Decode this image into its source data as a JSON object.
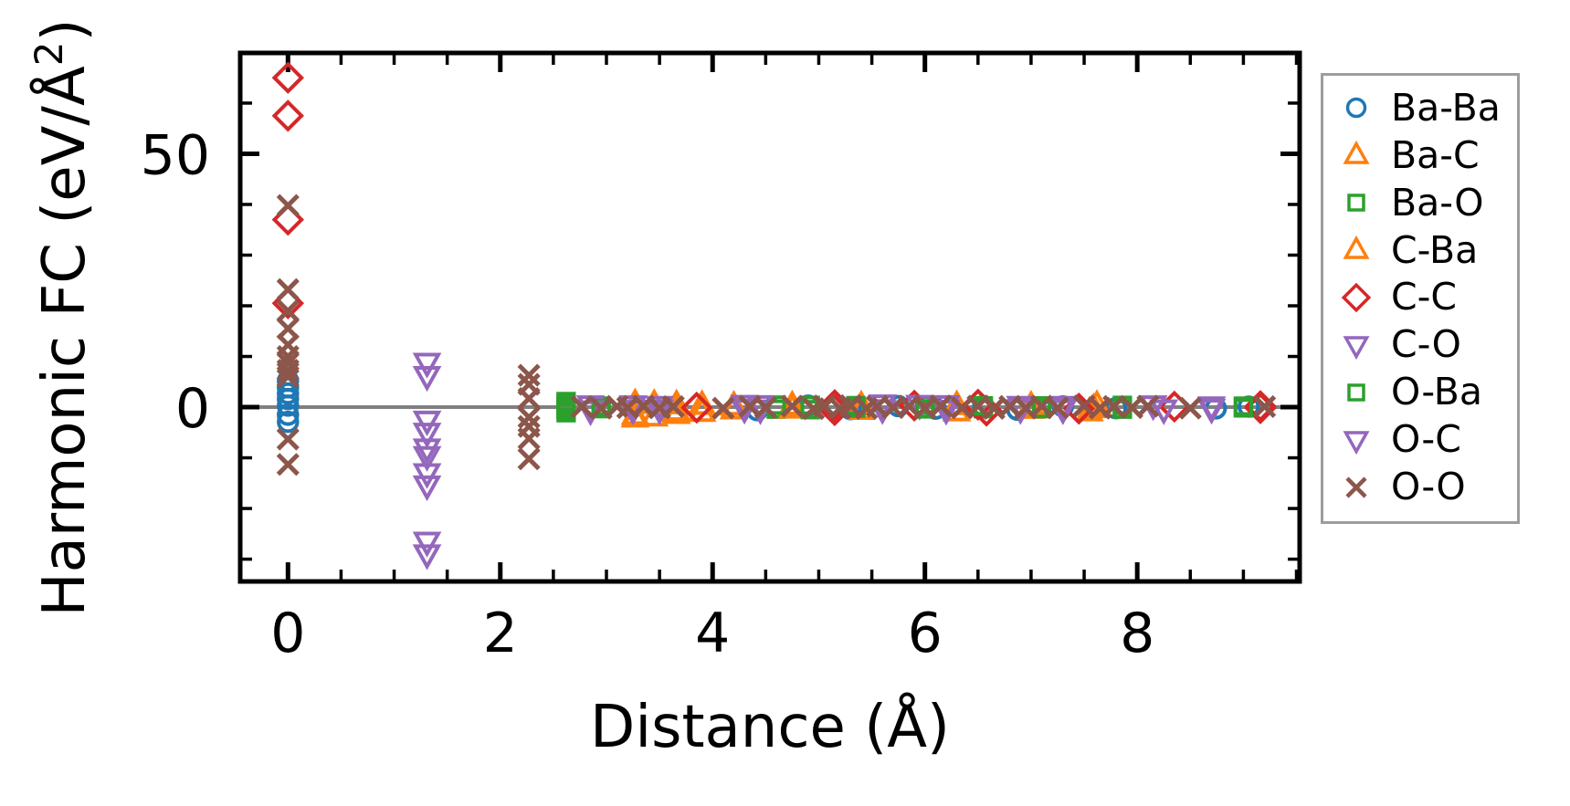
{
  "chart_data": {
    "type": "scatter",
    "xlabel": "Distance (Å)",
    "ylabel": "Harmonic FC (eV/Å²)",
    "ylabel_pre": "Harmonic FC (eV/Å",
    "ylabel_sup": "2",
    "ylabel_post": ")",
    "xlim": [
      -0.45,
      9.53
    ],
    "ylim": [
      -34.4,
      69.9
    ],
    "x_major_ticks": [
      0,
      2,
      4,
      6,
      8
    ],
    "x_tick_labels": [
      "0",
      "2",
      "4",
      "6",
      "8"
    ],
    "x_minor_step": 0.5,
    "y_major_ticks": [
      0,
      50
    ],
    "y_tick_labels": [
      "0",
      "50"
    ],
    "y_minor_step": 10,
    "grid": false,
    "zero_line": {
      "y": 0,
      "color": "#808080"
    },
    "axis_color": "#000000",
    "background_color": "#ffffff",
    "legend": {
      "position": "outside-right",
      "border_color": "#9d9d9d"
    },
    "series": [
      {
        "name": "Ba-Ba",
        "marker": "circle",
        "color": "#1f77b4",
        "points": [
          [
            0,
            5.2
          ],
          [
            0,
            3.9
          ],
          [
            0,
            2.7
          ],
          [
            0,
            1.6
          ],
          [
            0,
            0.3
          ],
          [
            0,
            -1.5
          ],
          [
            0,
            -2.9
          ],
          [
            4.42,
            -0.6
          ],
          [
            4.9,
            0.3
          ],
          [
            5.3,
            -0.4
          ],
          [
            5.75,
            0.2
          ],
          [
            6.1,
            -0.3
          ],
          [
            6.55,
            0.2
          ],
          [
            6.87,
            -0.5
          ],
          [
            7.3,
            0.15
          ],
          [
            7.8,
            -0.2
          ],
          [
            8.74,
            -0.25
          ],
          [
            9.05,
            0.1
          ]
        ]
      },
      {
        "name": "Ba-C",
        "marker": "triangle-up",
        "color": "#ff7f0e",
        "points": [
          [
            3.27,
            -1.6
          ],
          [
            3.27,
            0.7
          ],
          [
            3.45,
            -1.9
          ],
          [
            3.66,
            -1.4
          ],
          [
            3.66,
            0.5
          ],
          [
            3.9,
            -1.0
          ],
          [
            4.2,
            -0.5
          ],
          [
            4.75,
            0.3
          ],
          [
            5.4,
            -0.6
          ],
          [
            6.3,
            -0.9
          ],
          [
            7.0,
            -0.4
          ],
          [
            7.55,
            -0.9
          ],
          [
            7.62,
            0.4
          ]
        ]
      },
      {
        "name": "Ba-O",
        "marker": "square",
        "color": "#2ca02c",
        "points": [
          [
            2.62,
            0.6
          ],
          [
            2.62,
            -0.5
          ],
          [
            2.62,
            1.1
          ],
          [
            2.95,
            0.2
          ],
          [
            4.6,
            -0.4
          ],
          [
            4.92,
            0.35
          ],
          [
            5.35,
            -0.2
          ],
          [
            6.0,
            0.4
          ],
          [
            6.55,
            -0.3
          ],
          [
            7.1,
            0.25
          ],
          [
            7.86,
            -0.4
          ],
          [
            9.0,
            0.2
          ]
        ]
      },
      {
        "name": "C-Ba",
        "marker": "triangle-up",
        "color": "#ff7f0e",
        "points": [
          [
            3.27,
            -2.1
          ],
          [
            3.45,
            0.6
          ],
          [
            3.66,
            -0.8
          ],
          [
            3.9,
            0.4
          ],
          [
            4.2,
            0.25
          ],
          [
            4.75,
            -0.35
          ],
          [
            5.4,
            0.3
          ],
          [
            6.3,
            0.35
          ],
          [
            7.0,
            0.25
          ],
          [
            7.59,
            -0.25
          ]
        ]
      },
      {
        "name": "C-C",
        "marker": "diamond",
        "color": "#d62728",
        "points": [
          [
            0,
            65
          ],
          [
            0,
            57.5
          ],
          [
            0,
            37
          ],
          [
            0,
            20.5
          ],
          [
            3.85,
            -0.1
          ],
          [
            5.15,
            0.4
          ],
          [
            5.15,
            -0.6
          ],
          [
            5.9,
            0.3
          ],
          [
            6.5,
            0.5
          ],
          [
            6.58,
            -0.7
          ],
          [
            7.45,
            -0.3
          ],
          [
            8.35,
            0.1
          ],
          [
            9.16,
            0.2
          ],
          [
            9.16,
            -0.2
          ]
        ]
      },
      {
        "name": "C-O",
        "marker": "triangle-down",
        "color": "#9467bd",
        "points": [
          [
            1.31,
            8.8
          ],
          [
            1.31,
            -2.6
          ],
          [
            1.31,
            -8.1
          ],
          [
            1.31,
            -13.0
          ],
          [
            1.31,
            -26.5
          ],
          [
            2.85,
            0.4
          ],
          [
            3.25,
            -0.5
          ],
          [
            3.5,
            0.3
          ],
          [
            4.3,
            0.5
          ],
          [
            4.45,
            -0.4
          ],
          [
            5.6,
            0.6
          ],
          [
            5.95,
            0.5
          ],
          [
            6.2,
            -0.5
          ],
          [
            6.9,
            0.3
          ],
          [
            7.3,
            -0.4
          ],
          [
            8.15,
            0.4
          ],
          [
            8.7,
            -0.3
          ]
        ]
      },
      {
        "name": "O-Ba",
        "marker": "square",
        "color": "#2ca02c",
        "points": [
          [
            2.62,
            -1.1
          ],
          [
            2.62,
            0.15
          ],
          [
            2.95,
            -0.3
          ],
          [
            4.6,
            0.4
          ],
          [
            4.92,
            -0.5
          ],
          [
            5.35,
            0.3
          ],
          [
            6.0,
            -0.35
          ],
          [
            6.55,
            0.25
          ],
          [
            7.1,
            -0.3
          ],
          [
            7.86,
            0.35
          ],
          [
            9.0,
            -0.15
          ]
        ]
      },
      {
        "name": "O-C",
        "marker": "triangle-down",
        "color": "#9467bd",
        "points": [
          [
            1.31,
            6.2
          ],
          [
            1.31,
            -5.0
          ],
          [
            1.31,
            -9.6
          ],
          [
            1.31,
            -15.4
          ],
          [
            1.31,
            -29.0
          ],
          [
            2.85,
            -0.6
          ],
          [
            3.25,
            0.4
          ],
          [
            3.5,
            -0.45
          ],
          [
            4.3,
            -0.3
          ],
          [
            4.45,
            0.45
          ],
          [
            5.6,
            -0.35
          ],
          [
            6.2,
            0.45
          ],
          [
            6.9,
            -0.35
          ],
          [
            7.3,
            0.3
          ],
          [
            8.25,
            -0.4
          ],
          [
            8.7,
            0.2
          ]
        ]
      },
      {
        "name": "O-O",
        "marker": "x",
        "color": "#8c564b",
        "points": [
          [
            0,
            39.8
          ],
          [
            0,
            23.2
          ],
          [
            0,
            19.0
          ],
          [
            0,
            15.5
          ],
          [
            0,
            12.3
          ],
          [
            0,
            10.0
          ],
          [
            0,
            8.7
          ],
          [
            0,
            7.3
          ],
          [
            0,
            6.0
          ],
          [
            0,
            -6.3
          ],
          [
            0,
            -11.3
          ],
          [
            2.27,
            6.3
          ],
          [
            2.27,
            4.5
          ],
          [
            2.27,
            1.7
          ],
          [
            2.27,
            -2.0
          ],
          [
            2.27,
            -3.8
          ],
          [
            2.27,
            -6.2
          ],
          [
            2.27,
            -10.2
          ],
          [
            2.77,
            0.1
          ],
          [
            2.95,
            -0.2
          ],
          [
            3.1,
            0.15
          ],
          [
            3.2,
            -0.1
          ],
          [
            3.35,
            0.2
          ],
          [
            3.5,
            -0.15
          ],
          [
            3.63,
            0.1
          ],
          [
            4.1,
            -0.2
          ],
          [
            4.35,
            0.15
          ],
          [
            4.5,
            -0.1
          ],
          [
            4.75,
            0.2
          ],
          [
            4.95,
            -0.3
          ],
          [
            5.05,
            0.25
          ],
          [
            5.2,
            -0.2
          ],
          [
            5.3,
            0.3
          ],
          [
            5.45,
            -0.25
          ],
          [
            5.55,
            0.15
          ],
          [
            5.7,
            -0.1
          ],
          [
            5.85,
            0.2
          ],
          [
            6.0,
            -0.2
          ],
          [
            6.15,
            0.25
          ],
          [
            6.35,
            -0.15
          ],
          [
            6.5,
            0.2
          ],
          [
            6.65,
            -0.25
          ],
          [
            6.8,
            0.15
          ],
          [
            6.95,
            -0.2
          ],
          [
            7.1,
            0.2
          ],
          [
            7.25,
            -0.15
          ],
          [
            7.5,
            0.25
          ],
          [
            7.65,
            -0.2
          ],
          [
            7.78,
            0.15
          ],
          [
            7.95,
            -0.1
          ],
          [
            8.1,
            0.2
          ],
          [
            8.5,
            -0.2
          ],
          [
            9.2,
            0.1
          ]
        ]
      }
    ]
  }
}
